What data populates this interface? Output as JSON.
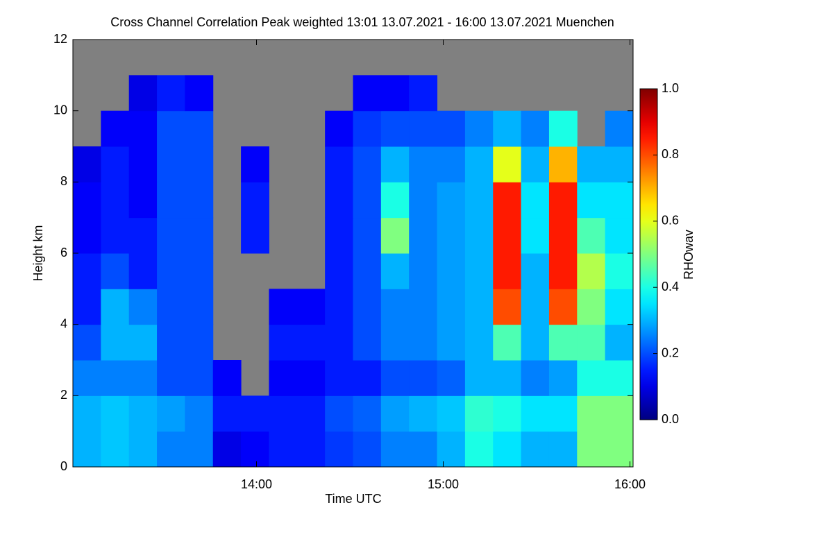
{
  "chart_data": {
    "type": "heatmap",
    "title": "Cross Channel Correlation Peak weighted   13:01 13.07.2021 - 16:00 13.07.2021 Muenchen",
    "xlabel": "Time UTC",
    "ylabel": "Height km",
    "colorbar_label": "RHOwav",
    "colormap": "jet",
    "missing_color": "#808080",
    "xlim": [
      781,
      961
    ],
    "ylim": [
      0,
      12
    ],
    "xticks": [
      {
        "value": 840,
        "label": "14:00"
      },
      {
        "value": 900,
        "label": "15:00"
      },
      {
        "value": 960,
        "label": "16:00"
      }
    ],
    "yticks": [
      0,
      2,
      4,
      6,
      8,
      10,
      12
    ],
    "clim": [
      0,
      1
    ],
    "cticks": [
      {
        "value": 0,
        "label": "0.0"
      },
      {
        "value": 0.2,
        "label": "0.2"
      },
      {
        "value": 0.4,
        "label": "0.4"
      },
      {
        "value": 0.6,
        "label": "0.6"
      },
      {
        "value": 0.8,
        "label": "0.8"
      },
      {
        "value": 1,
        "label": "1.0"
      }
    ],
    "xbins": [
      781,
      790,
      799,
      808,
      817,
      826,
      835,
      844,
      853,
      862,
      871,
      880,
      889,
      898,
      907,
      916,
      925,
      934,
      943,
      952,
      961
    ],
    "ybins": [
      0,
      1,
      2,
      3,
      4,
      5,
      6,
      7,
      8,
      9,
      10,
      11,
      12
    ],
    "values": [
      [
        0.3,
        0.32,
        0.3,
        0.25,
        0.25,
        0.1,
        0.12,
        0.15,
        0.15,
        0.18,
        0.2,
        0.25,
        0.25,
        0.3,
        0.4,
        0.35,
        0.3,
        0.3,
        0.5,
        0.5
      ],
      [
        0.3,
        0.32,
        0.3,
        0.28,
        0.25,
        0.15,
        0.15,
        0.15,
        0.15,
        0.2,
        0.22,
        0.28,
        0.3,
        0.32,
        0.42,
        0.4,
        0.35,
        0.35,
        0.5,
        0.5
      ],
      [
        0.25,
        0.25,
        0.25,
        0.2,
        0.2,
        0.12,
        null,
        0.12,
        0.12,
        0.15,
        0.15,
        0.2,
        0.2,
        0.22,
        0.3,
        0.3,
        0.25,
        0.28,
        0.4,
        0.4
      ],
      [
        0.2,
        0.3,
        0.3,
        0.2,
        0.2,
        null,
        null,
        0.15,
        0.15,
        0.15,
        0.2,
        0.25,
        0.25,
        0.28,
        0.3,
        0.45,
        0.3,
        0.45,
        0.45,
        0.3
      ],
      [
        0.15,
        0.3,
        0.25,
        0.2,
        0.2,
        null,
        null,
        0.12,
        0.12,
        0.15,
        0.2,
        0.25,
        0.25,
        0.28,
        0.3,
        0.8,
        0.3,
        0.8,
        0.5,
        0.35
      ],
      [
        0.15,
        0.2,
        0.15,
        0.2,
        0.2,
        null,
        null,
        null,
        null,
        0.15,
        0.2,
        0.3,
        0.25,
        0.28,
        0.3,
        0.85,
        0.3,
        0.85,
        0.55,
        0.4
      ],
      [
        0.12,
        0.15,
        0.15,
        0.2,
        0.2,
        null,
        0.15,
        null,
        null,
        0.15,
        0.2,
        0.5,
        0.25,
        0.28,
        0.3,
        0.85,
        0.35,
        0.85,
        0.45,
        0.35
      ],
      [
        0.12,
        0.15,
        0.12,
        0.2,
        0.2,
        null,
        0.15,
        null,
        null,
        0.15,
        0.2,
        0.4,
        0.25,
        0.28,
        0.3,
        0.85,
        0.35,
        0.85,
        0.35,
        0.35
      ],
      [
        0.1,
        0.15,
        0.12,
        0.2,
        0.2,
        null,
        0.12,
        null,
        null,
        0.15,
        0.2,
        0.3,
        0.25,
        0.25,
        0.3,
        0.6,
        0.3,
        0.7,
        0.3,
        0.3
      ],
      [
        null,
        0.12,
        0.12,
        0.2,
        0.2,
        null,
        null,
        null,
        null,
        0.12,
        0.18,
        0.2,
        0.2,
        0.2,
        0.25,
        0.3,
        0.25,
        0.4,
        null,
        0.25
      ],
      [
        null,
        null,
        0.1,
        0.15,
        0.12,
        null,
        null,
        null,
        null,
        null,
        0.12,
        0.12,
        0.15,
        null,
        null,
        null,
        null,
        null,
        null,
        null
      ],
      [
        null,
        null,
        null,
        null,
        null,
        null,
        null,
        null,
        null,
        null,
        null,
        null,
        null,
        null,
        null,
        null,
        null,
        null,
        null,
        null
      ]
    ]
  }
}
